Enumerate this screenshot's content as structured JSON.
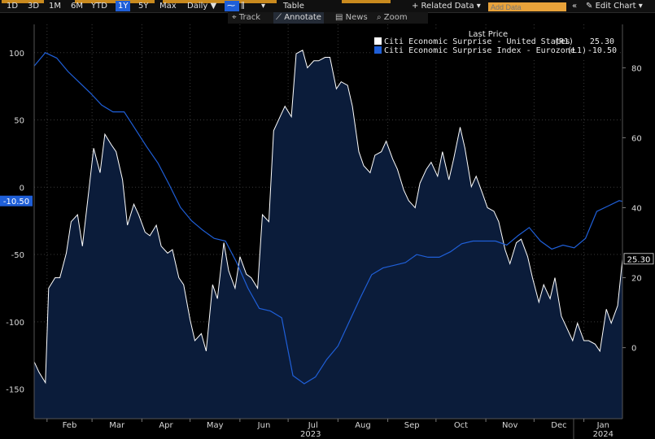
{
  "toolbar": {
    "ranges": [
      "1D",
      "3D",
      "1M",
      "6M",
      "YTD",
      "1Y",
      "5Y",
      "Max"
    ],
    "active_range": "1Y",
    "frequency": "Daily ▼",
    "table_label": "Table",
    "related_data_label": "+ Related Data ▾",
    "add_data_placeholder": "Add Data",
    "edit_chart_label": "Edit Chart ▾",
    "track_label": "Track",
    "annotate_label": "Annotate",
    "news_label": "News",
    "zoom_label": "Zoom"
  },
  "colors": {
    "background": "#000000",
    "us_series": "#ffffff",
    "us_area_fill": "#0b1c3a",
    "ez_series": "#1f5fd8",
    "gridline": "#3a3a3a",
    "accent_amber": "#e8a23a"
  },
  "chart_data": {
    "type": "line",
    "legend_title": "Last Price",
    "legend_position": "top-right",
    "grid": true,
    "x_axis": {
      "month_labels": [
        "Feb",
        "Mar",
        "Apr",
        "May",
        "Jun",
        "Jul",
        "Aug",
        "Sep",
        "Oct",
        "Nov",
        "Dec",
        "Jan"
      ],
      "year_labels": [
        "2023",
        "2024"
      ],
      "range": [
        "2023-01-24",
        "2024-01-25"
      ]
    },
    "left_axis": {
      "ticks": [
        100,
        50,
        0,
        -50,
        -100,
        -150
      ],
      "ylim": [
        -172,
        121
      ]
    },
    "right_axis": {
      "ticks": [
        80,
        60,
        40,
        20,
        0
      ],
      "ylim": [
        -20.3,
        92.4
      ]
    },
    "series": [
      {
        "name": "Citi Economic Surprise - United States",
        "axis_code": "(R1)",
        "axis": "right",
        "last": "25.30",
        "style": "area",
        "color": "#ffffff",
        "x": [
          "2023-01-24",
          "2023-01-27",
          "2023-01-31",
          "2023-02-02",
          "2023-02-06",
          "2023-02-09",
          "2023-02-13",
          "2023-02-16",
          "2023-02-20",
          "2023-02-23",
          "2023-02-27",
          "2023-03-02",
          "2023-03-06",
          "2023-03-09",
          "2023-03-13",
          "2023-03-16",
          "2023-03-20",
          "2023-03-23",
          "2023-03-27",
          "2023-03-30",
          "2023-04-03",
          "2023-04-06",
          "2023-04-10",
          "2023-04-13",
          "2023-04-17",
          "2023-04-20",
          "2023-04-24",
          "2023-04-27",
          "2023-05-01",
          "2023-05-04",
          "2023-05-08",
          "2023-05-11",
          "2023-05-15",
          "2023-05-18",
          "2023-05-22",
          "2023-05-25",
          "2023-05-29",
          "2023-06-01",
          "2023-06-05",
          "2023-06-08",
          "2023-06-12",
          "2023-06-15",
          "2023-06-19",
          "2023-06-22",
          "2023-06-26",
          "2023-06-29",
          "2023-07-03",
          "2023-07-06",
          "2023-07-10",
          "2023-07-13",
          "2023-07-17",
          "2023-07-20",
          "2023-07-24",
          "2023-07-27",
          "2023-07-31",
          "2023-08-03",
          "2023-08-07",
          "2023-08-10",
          "2023-08-14",
          "2023-08-17",
          "2023-08-21",
          "2023-08-24",
          "2023-08-28",
          "2023-08-31",
          "2023-09-04",
          "2023-09-07",
          "2023-09-11",
          "2023-09-14",
          "2023-09-18",
          "2023-09-21",
          "2023-09-25",
          "2023-09-28",
          "2023-10-02",
          "2023-10-05",
          "2023-10-09",
          "2023-10-12",
          "2023-10-16",
          "2023-10-19",
          "2023-10-23",
          "2023-10-26",
          "2023-10-30",
          "2023-11-02",
          "2023-11-06",
          "2023-11-09",
          "2023-11-13",
          "2023-11-16",
          "2023-11-20",
          "2023-11-23",
          "2023-11-27",
          "2023-11-30",
          "2023-12-04",
          "2023-12-07",
          "2023-12-11",
          "2023-12-14",
          "2023-12-18",
          "2023-12-21",
          "2023-12-25",
          "2023-12-28",
          "2024-01-01",
          "2024-01-04",
          "2024-01-08",
          "2024-01-11",
          "2024-01-15",
          "2024-01-18",
          "2024-01-22",
          "2024-01-25"
        ],
        "values": [
          -4,
          -7,
          -10,
          17,
          20,
          20,
          27,
          36,
          38,
          29,
          45,
          57,
          50,
          61,
          58,
          56,
          48,
          35,
          41,
          38,
          33,
          32,
          35,
          29,
          27,
          28,
          20,
          18,
          8,
          2,
          4,
          -1,
          18,
          14,
          30,
          22,
          17,
          26,
          21,
          20,
          17,
          38,
          36,
          62,
          66,
          69,
          66,
          84,
          85,
          80,
          82,
          82,
          83,
          83,
          74,
          76,
          75,
          69,
          56,
          52,
          50,
          55,
          56,
          59,
          54,
          51,
          45,
          42,
          40,
          47,
          51,
          53,
          49,
          56,
          48,
          54,
          63,
          57,
          46,
          49,
          44,
          40,
          39,
          36,
          28,
          24,
          30,
          31,
          26,
          20,
          13,
          18,
          14,
          20,
          9,
          6,
          2,
          7,
          2,
          2,
          1,
          -1,
          11,
          7,
          12,
          25.3
        ]
      },
      {
        "name": "Citi Economic Surprise Index - Eurozone",
        "axis_code": "(L1)",
        "axis": "left",
        "last": "-10.50",
        "style": "line",
        "color": "#1f5fd8",
        "x": [
          "2023-01-24",
          "2023-01-31",
          "2023-02-07",
          "2023-02-14",
          "2023-02-21",
          "2023-02-28",
          "2023-03-07",
          "2023-03-14",
          "2023-03-21",
          "2023-03-28",
          "2023-04-04",
          "2023-04-11",
          "2023-04-18",
          "2023-04-25",
          "2023-05-02",
          "2023-05-09",
          "2023-05-16",
          "2023-05-23",
          "2023-05-30",
          "2023-06-06",
          "2023-06-13",
          "2023-06-20",
          "2023-06-27",
          "2023-07-04",
          "2023-07-11",
          "2023-07-18",
          "2023-07-25",
          "2023-08-01",
          "2023-08-08",
          "2023-08-15",
          "2023-08-22",
          "2023-08-29",
          "2023-09-05",
          "2023-09-12",
          "2023-09-19",
          "2023-09-26",
          "2023-10-03",
          "2023-10-10",
          "2023-10-17",
          "2023-10-24",
          "2023-10-31",
          "2023-11-07",
          "2023-11-14",
          "2023-11-21",
          "2023-11-28",
          "2023-12-05",
          "2023-12-12",
          "2023-12-19",
          "2023-12-26",
          "2024-01-02",
          "2024-01-09",
          "2024-01-16",
          "2024-01-23",
          "2024-01-25"
        ],
        "values": [
          90,
          100,
          96,
          86,
          78,
          70,
          61,
          56,
          56,
          43,
          30,
          18,
          2,
          -15,
          -25,
          -32,
          -38,
          -40,
          -56,
          -75,
          -90,
          -92,
          -97,
          -140,
          -146,
          -141,
          -128,
          -118,
          -100,
          -82,
          -65,
          -60,
          -58,
          -56,
          -50,
          -52,
          -52,
          -48,
          -42,
          -40,
          -40,
          -40,
          -43,
          -36,
          -30,
          -40,
          -46,
          -43,
          -45,
          -38,
          -18,
          -14,
          -10,
          -10.5
        ]
      }
    ]
  }
}
